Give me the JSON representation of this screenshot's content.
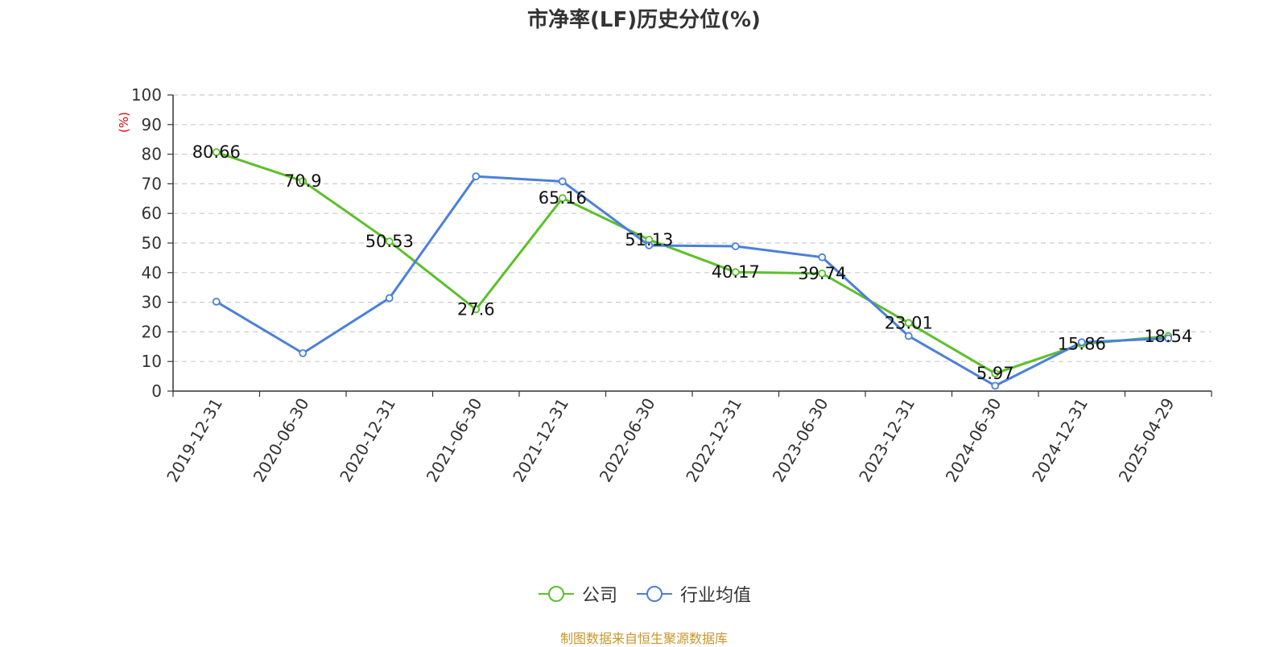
{
  "title": "市净率(LF)历史分位(%)",
  "source_note": "制图数据来自恒生聚源数据库",
  "chart_data": {
    "type": "line",
    "title": "市净率(LF)历史分位(%)",
    "ylabel": "(%)",
    "xlabel": "",
    "ylim": [
      0,
      100
    ],
    "yticks": [
      0,
      10,
      20,
      30,
      40,
      50,
      60,
      70,
      80,
      90,
      100
    ],
    "grid": true,
    "legend_position": "bottom",
    "categories": [
      "2019-12-31",
      "2020-06-30",
      "2020-12-31",
      "2021-06-30",
      "2021-12-31",
      "2022-06-30",
      "2022-12-31",
      "2023-06-30",
      "2023-12-31",
      "2024-06-30",
      "2024-12-31",
      "2025-04-29"
    ],
    "series": [
      {
        "name": "公司",
        "color": "#5cc02a",
        "show_labels": true,
        "values": [
          80.66,
          70.9,
          50.53,
          27.6,
          65.16,
          51.13,
          40.17,
          39.74,
          23.01,
          5.97,
          15.86,
          18.54
        ]
      },
      {
        "name": "行业均值",
        "color": "#4b7fdc",
        "show_labels": false,
        "values": [
          30.2,
          12.8,
          31.4,
          72.5,
          70.8,
          49.2,
          48.9,
          45.2,
          18.6,
          1.8,
          16.5,
          17.8
        ]
      }
    ]
  }
}
